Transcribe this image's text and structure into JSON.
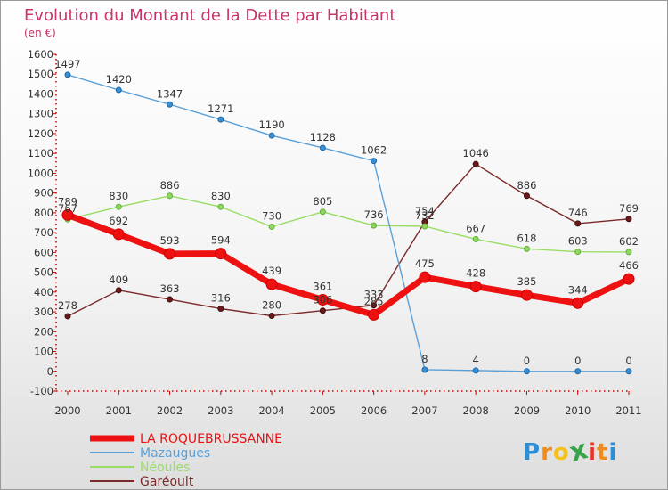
{
  "chart_data": {
    "type": "line",
    "title": "Evolution du Montant de la Dette par Habitant",
    "subtitle": "(en €)",
    "xlabel": "",
    "ylabel": "",
    "ylim": [
      -100,
      1600
    ],
    "yticks": [
      -100,
      0,
      100,
      200,
      300,
      400,
      500,
      600,
      700,
      800,
      900,
      1000,
      1100,
      1200,
      1300,
      1400,
      1500,
      1600
    ],
    "categories": [
      "2000",
      "2001",
      "2002",
      "2003",
      "2004",
      "2005",
      "2006",
      "2007",
      "2008",
      "2009",
      "2010",
      "2011"
    ],
    "grid": false,
    "legend_position": "bottom-left",
    "series": [
      {
        "name": "LA ROQUEBRUSSANNE",
        "color": "#ee1111",
        "values": [
          789,
          692,
          593,
          594,
          439,
          361,
          285,
          475,
          428,
          385,
          344,
          466
        ],
        "labels": [
          "789",
          "692",
          "593",
          "594",
          "439",
          "361",
          "285",
          "475",
          "428",
          "385",
          "344",
          "466"
        ]
      },
      {
        "name": "Mazaugues",
        "color": "#5aa0d8",
        "values": [
          1497,
          1420,
          1347,
          1271,
          1190,
          1128,
          1062,
          8,
          4,
          0,
          0,
          0
        ],
        "labels": [
          "1497",
          "1420",
          "1347",
          "1271",
          "1190",
          "1128",
          "1062",
          "8",
          "4",
          "0",
          "0",
          "0"
        ]
      },
      {
        "name": "Néoules",
        "color": "#99dd66",
        "values": [
          767,
          830,
          886,
          830,
          730,
          805,
          736,
          732,
          667,
          618,
          603,
          602
        ],
        "labels": [
          "767",
          "830",
          "886",
          "830",
          "730",
          "805",
          "736",
          "732",
          "667",
          "618",
          "603",
          "602"
        ]
      },
      {
        "name": "Garéoult",
        "color": "#7a2a2a",
        "values": [
          278,
          409,
          363,
          316,
          280,
          306,
          333,
          754,
          1046,
          886,
          746,
          769
        ],
        "labels": [
          "278",
          "409",
          "363",
          "316",
          "280",
          "306",
          "333",
          "754",
          "1046",
          "886",
          "746",
          "769"
        ]
      }
    ]
  },
  "logo": {
    "letters": [
      "P",
      "r",
      "o",
      "x",
      "i",
      "t",
      "i"
    ],
    "colors": [
      "#2a8fd6",
      "#f08c1e",
      "#f4c21b",
      "#3aa34a",
      "#e5332a",
      "#f08c1e",
      "#2a8fd6"
    ]
  }
}
